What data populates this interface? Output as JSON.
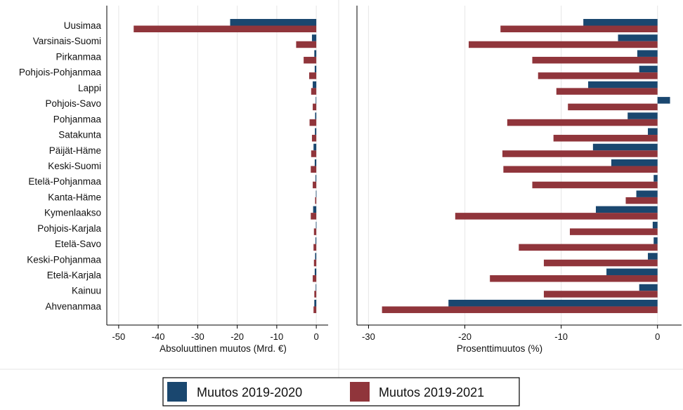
{
  "colors": {
    "series_2020": "#1a476f",
    "series_2021": "#90353b",
    "grid": "#eaeaea",
    "axis": "#000000"
  },
  "chart_data": [
    {
      "type": "bar",
      "orientation": "horizontal",
      "xlabel": "Absoluuttinen muutos (Mrd. €)",
      "xlim": [
        -53,
        3
      ],
      "xticks": [
        -50,
        -40,
        -30,
        -20,
        -10,
        0
      ],
      "grid": true,
      "categories": [
        "Uusimaa",
        "Varsinais-Suomi",
        "Pirkanmaa",
        "Pohjois-Pohjanmaa",
        "Lappi",
        "Pohjois-Savo",
        "Pohjanmaa",
        "Satakunta",
        "Päijät-Häme",
        "Keski-Suomi",
        "Etelä-Pohjanmaa",
        "Kanta-Häme",
        "Kymenlaakso",
        "Pohjois-Karjala",
        "Etelä-Savo",
        "Keski-Pohjanmaa",
        "Etelä-Karjala",
        "Kainuu",
        "Ahvenanmaa"
      ],
      "series": [
        {
          "name": "Muutos 2019-2020",
          "values": [
            -21.8,
            -1.1,
            -0.5,
            -0.4,
            -0.9,
            -0.15,
            -0.3,
            -0.35,
            -0.7,
            -0.4,
            -0.2,
            -0.1,
            -0.8,
            -0.1,
            -0.2,
            -0.3,
            -0.4,
            -0.15,
            -0.5
          ]
        },
        {
          "name": "Muutos 2019-2021",
          "values": [
            -46.2,
            -5.1,
            -3.2,
            -1.8,
            -1.3,
            -0.9,
            -1.7,
            -1.1,
            -1.3,
            -1.4,
            -0.9,
            -0.3,
            -1.4,
            -0.6,
            -0.7,
            -0.6,
            -0.9,
            -0.5,
            -0.7
          ]
        }
      ]
    },
    {
      "type": "bar",
      "orientation": "horizontal",
      "xlabel": "Prosenttimuutos (%)",
      "xlim": [
        -31.2,
        2.5
      ],
      "xticks": [
        -30,
        -20,
        -10,
        0
      ],
      "grid": true,
      "categories": [
        "Uusimaa",
        "Varsinais-Suomi",
        "Pirkanmaa",
        "Pohjois-Pohjanmaa",
        "Lappi",
        "Pohjois-Savo",
        "Pohjanmaa",
        "Satakunta",
        "Päijät-Häme",
        "Keski-Suomi",
        "Etelä-Pohjanmaa",
        "Kanta-Häme",
        "Kymenlaakso",
        "Pohjois-Karjala",
        "Etelä-Savo",
        "Keski-Pohjanmaa",
        "Etelä-Karjala",
        "Kainuu",
        "Ahvenanmaa"
      ],
      "series": [
        {
          "name": "Muutos 2019-2020",
          "values": [
            -7.7,
            -4.1,
            -2.1,
            -1.9,
            -7.2,
            1.3,
            -3.1,
            -1.0,
            -6.7,
            -4.8,
            -0.4,
            -2.2,
            -6.4,
            -0.5,
            -0.4,
            -1.0,
            -5.3,
            -1.9,
            -21.7
          ]
        },
        {
          "name": "Muutos 2019-2021",
          "values": [
            -16.3,
            -19.6,
            -13.0,
            -12.4,
            -10.5,
            -9.3,
            -15.6,
            -10.8,
            -16.1,
            -16.0,
            -13.0,
            -3.3,
            -21.0,
            -9.1,
            -14.4,
            -11.8,
            -17.4,
            -11.8,
            -28.6
          ]
        }
      ]
    }
  ],
  "legend": {
    "items": [
      "Muutos 2019-2020",
      "Muutos 2019-2021"
    ]
  }
}
